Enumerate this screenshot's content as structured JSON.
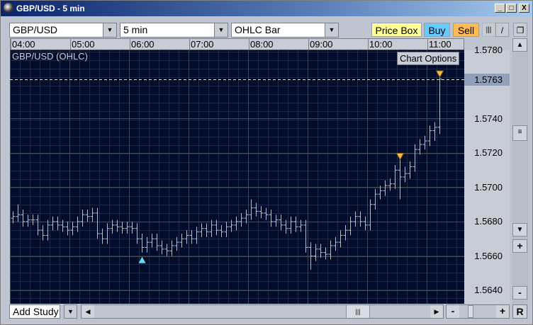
{
  "window": {
    "title": "GBP/USD - 5 min",
    "minimize": "_",
    "maximize": "□",
    "close": "X"
  },
  "toolbar": {
    "symbol": "GBP/USD",
    "interval": "5 min",
    "chart_type": "OHLC Bar",
    "price_box": "Price Box",
    "buy": "Buy",
    "sell": "Sell",
    "colors": {
      "price_box": "#ffff99",
      "buy": "#66ccff",
      "sell": "#ffbb55"
    }
  },
  "chart": {
    "label": "GBP/USD (OHLC)",
    "options_button": "Chart Options",
    "current_price": "1.5763",
    "time_labels": [
      "04:00",
      "05:00",
      "06:00",
      "07:00",
      "08:00",
      "09:00",
      "10:00",
      "11:00"
    ],
    "price_labels": [
      "1.5780",
      "1.5740",
      "1.5720",
      "1.5700",
      "1.5680",
      "1.5660",
      "1.5640"
    ]
  },
  "chart_data": {
    "type": "ohlc",
    "title": "GBP/USD (OHLC)",
    "interval": "5 min",
    "first_bar_time": "04:00",
    "current_price": 1.5763,
    "bars": [
      [
        1.5682,
        1.5686,
        1.5679,
        1.5683
      ],
      [
        1.5683,
        1.569,
        1.568,
        1.5684
      ],
      [
        1.5684,
        1.5687,
        1.5677,
        1.568
      ],
      [
        1.568,
        1.5684,
        1.5677,
        1.5681
      ],
      [
        1.5681,
        1.5684,
        1.5678,
        1.5681
      ],
      [
        1.5681,
        1.5684,
        1.5672,
        1.5675
      ],
      [
        1.5675,
        1.5678,
        1.5669,
        1.5672
      ],
      [
        1.5672,
        1.5681,
        1.5669,
        1.5678
      ],
      [
        1.5678,
        1.5683,
        1.5675,
        1.568
      ],
      [
        1.568,
        1.5683,
        1.5675,
        1.5678
      ],
      [
        1.5678,
        1.5681,
        1.5674,
        1.5677
      ],
      [
        1.5677,
        1.568,
        1.5672,
        1.5675
      ],
      [
        1.5675,
        1.568,
        1.5672,
        1.5677
      ],
      [
        1.5677,
        1.5683,
        1.5674,
        1.568
      ],
      [
        1.568,
        1.5687,
        1.5677,
        1.5684
      ],
      [
        1.5684,
        1.5687,
        1.568,
        1.5683
      ],
      [
        1.5683,
        1.5688,
        1.568,
        1.5685
      ],
      [
        1.5685,
        1.5688,
        1.567,
        1.5673
      ],
      [
        1.5673,
        1.5676,
        1.5667,
        1.567
      ],
      [
        1.567,
        1.5679,
        1.5667,
        1.5676
      ],
      [
        1.5676,
        1.5681,
        1.5673,
        1.5678
      ],
      [
        1.5678,
        1.5681,
        1.5674,
        1.5677
      ],
      [
        1.5677,
        1.568,
        1.5673,
        1.5676
      ],
      [
        1.5676,
        1.568,
        1.5673,
        1.5677
      ],
      [
        1.5677,
        1.568,
        1.5673,
        1.5676
      ],
      [
        1.5676,
        1.5679,
        1.5667,
        1.567
      ],
      [
        1.567,
        1.5673,
        1.5662,
        1.5665
      ],
      [
        1.5665,
        1.5671,
        1.5662,
        1.5668
      ],
      [
        1.5668,
        1.5673,
        1.5665,
        1.567
      ],
      [
        1.567,
        1.5673,
        1.5663,
        1.5666
      ],
      [
        1.5666,
        1.5669,
        1.5661,
        1.5664
      ],
      [
        1.5664,
        1.5667,
        1.566,
        1.5663
      ],
      [
        1.5663,
        1.5669,
        1.566,
        1.5666
      ],
      [
        1.5666,
        1.5671,
        1.5663,
        1.5668
      ],
      [
        1.5668,
        1.5673,
        1.5665,
        1.567
      ],
      [
        1.567,
        1.5675,
        1.5667,
        1.5672
      ],
      [
        1.5672,
        1.5675,
        1.5667,
        1.567
      ],
      [
        1.567,
        1.5677,
        1.5667,
        1.5674
      ],
      [
        1.5674,
        1.5679,
        1.5671,
        1.5676
      ],
      [
        1.5676,
        1.5679,
        1.5671,
        1.5674
      ],
      [
        1.5674,
        1.5681,
        1.5671,
        1.5678
      ],
      [
        1.5678,
        1.5681,
        1.5672,
        1.5675
      ],
      [
        1.5675,
        1.5678,
        1.5671,
        1.5674
      ],
      [
        1.5674,
        1.568,
        1.5671,
        1.5677
      ],
      [
        1.5677,
        1.5681,
        1.5674,
        1.5678
      ],
      [
        1.5678,
        1.5683,
        1.5675,
        1.568
      ],
      [
        1.568,
        1.5685,
        1.5677,
        1.5682
      ],
      [
        1.5682,
        1.5687,
        1.5679,
        1.5684
      ],
      [
        1.5684,
        1.5693,
        1.5681,
        1.5688
      ],
      [
        1.5688,
        1.5691,
        1.5683,
        1.5686
      ],
      [
        1.5686,
        1.5689,
        1.5682,
        1.5685
      ],
      [
        1.5685,
        1.5688,
        1.5681,
        1.5684
      ],
      [
        1.5684,
        1.5687,
        1.5677,
        1.568
      ],
      [
        1.568,
        1.5684,
        1.5677,
        1.5681
      ],
      [
        1.5681,
        1.5684,
        1.5675,
        1.5678
      ],
      [
        1.5678,
        1.5681,
        1.5673,
        1.5676
      ],
      [
        1.5676,
        1.5683,
        1.5673,
        1.568
      ],
      [
        1.568,
        1.5683,
        1.5674,
        1.5677
      ],
      [
        1.5677,
        1.5681,
        1.5674,
        1.5678
      ],
      [
        1.5678,
        1.5681,
        1.5662,
        1.5665
      ],
      [
        1.5665,
        1.5668,
        1.5652,
        1.566
      ],
      [
        1.566,
        1.5667,
        1.5657,
        1.5664
      ],
      [
        1.5664,
        1.5667,
        1.5659,
        1.5662
      ],
      [
        1.5662,
        1.5665,
        1.5658,
        1.5661
      ],
      [
        1.5661,
        1.5669,
        1.5658,
        1.5666
      ],
      [
        1.5666,
        1.5671,
        1.5663,
        1.5668
      ],
      [
        1.5668,
        1.5675,
        1.5665,
        1.5672
      ],
      [
        1.5672,
        1.5678,
        1.5669,
        1.5675
      ],
      [
        1.5675,
        1.5683,
        1.5672,
        1.568
      ],
      [
        1.568,
        1.5686,
        1.5677,
        1.5683
      ],
      [
        1.5683,
        1.5686,
        1.5677,
        1.568
      ],
      [
        1.568,
        1.5683,
        1.5675,
        1.5678
      ],
      [
        1.5678,
        1.5693,
        1.5675,
        1.569
      ],
      [
        1.569,
        1.5699,
        1.5687,
        1.5696
      ],
      [
        1.5696,
        1.5701,
        1.5693,
        1.5698
      ],
      [
        1.5698,
        1.5704,
        1.5695,
        1.5701
      ],
      [
        1.5701,
        1.5705,
        1.5698,
        1.5702
      ],
      [
        1.5702,
        1.5713,
        1.5699,
        1.571
      ],
      [
        1.571,
        1.5719,
        1.5693,
        1.5706
      ],
      [
        1.5706,
        1.5712,
        1.5703,
        1.5708
      ],
      [
        1.5708,
        1.5715,
        1.5705,
        1.5712
      ],
      [
        1.5712,
        1.5725,
        1.5709,
        1.5722
      ],
      [
        1.5722,
        1.5728,
        1.5719,
        1.5725
      ],
      [
        1.5725,
        1.573,
        1.5722,
        1.5727
      ],
      [
        1.5727,
        1.5736,
        1.5724,
        1.5733
      ],
      [
        1.5733,
        1.5738,
        1.5727,
        1.5735
      ],
      [
        1.5735,
        1.5767,
        1.5731,
        1.5763
      ]
    ],
    "markers": [
      {
        "bar": 26,
        "type": "up",
        "color": "#66ddee"
      },
      {
        "bar": 78,
        "type": "down",
        "color": "#ffbb44"
      },
      {
        "bar": 86,
        "type": "down",
        "color": "#ffbb44"
      }
    ],
    "ylim": [
      1.5632,
      1.578
    ],
    "grid": true
  },
  "footer": {
    "add_study": "Add Study",
    "reset": "R",
    "zoom_in": "+",
    "zoom_out": "-"
  },
  "colors": {
    "chart_bg": "#000c2a",
    "bars": "#b8bcc8",
    "grid": "#1a2a4a"
  }
}
